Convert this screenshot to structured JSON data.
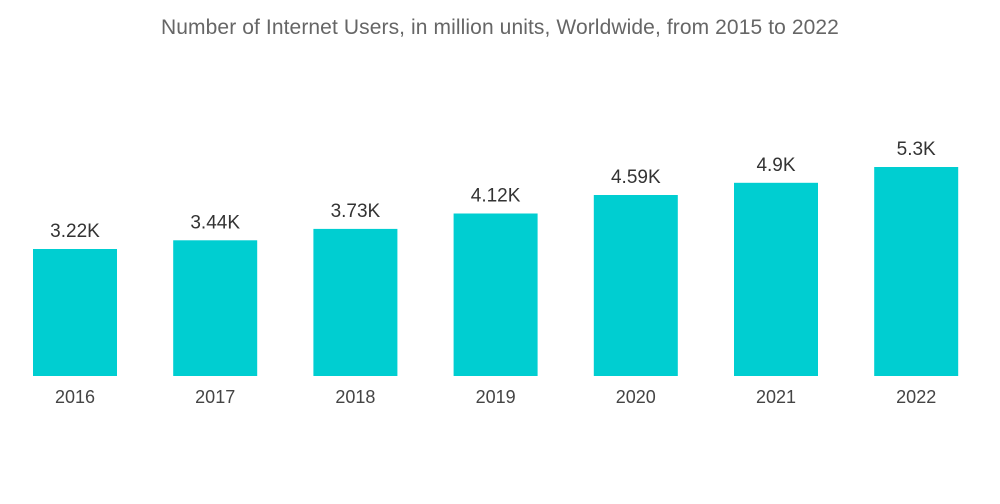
{
  "chart_data": {
    "type": "bar",
    "title": "Number of Internet Users, in million units, Worldwide, from 2015 to 2022",
    "categories": [
      "2016",
      "2017",
      "2018",
      "2019",
      "2020",
      "2021",
      "2022"
    ],
    "values": [
      3.22,
      3.44,
      3.73,
      4.12,
      4.59,
      4.9,
      5.3
    ],
    "value_labels": [
      "3.22K",
      "3.44K",
      "3.73K",
      "4.12K",
      "4.59K",
      "4.9K",
      "5.3K"
    ],
    "xlabel": "",
    "ylabel": "",
    "ylim": [
      0,
      5.3
    ],
    "grid": false,
    "bar_color": "#00CED1"
  }
}
